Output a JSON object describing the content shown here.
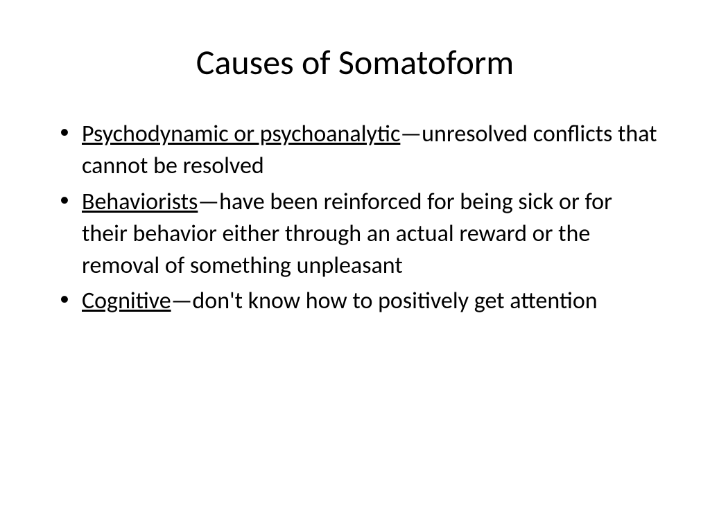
{
  "slide": {
    "title": "Causes of Somatoform",
    "title_fontsize": 50,
    "body_fontsize": 34,
    "background_color": "#ffffff",
    "text_color": "#000000",
    "bullets": [
      {
        "term": "Psychodynamic or psychoanalytic",
        "separator": "—",
        "description": "unresolved conflicts that cannot be resolved"
      },
      {
        "term": "Behaviorists",
        "separator": "—",
        "description": "have been reinforced for being sick or for their behavior either through an actual reward or the removal of something unpleasant"
      },
      {
        "term": "Cognitive",
        "separator": "—",
        "description": "don't know how to positively get attention"
      }
    ]
  }
}
